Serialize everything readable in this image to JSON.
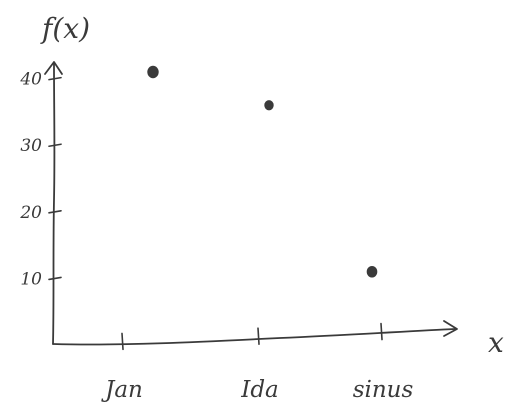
{
  "chart_data": {
    "type": "scatter",
    "xlabel": "x",
    "ylabel": "f(x)",
    "categories": [
      "Jan",
      "Ida",
      "sinus"
    ],
    "values": [
      41,
      36,
      11
    ],
    "yticks": [
      10,
      20,
      30,
      40
    ],
    "ylim": [
      0,
      44
    ],
    "grid": false,
    "legend": "none",
    "style": "hand-drawn pencil sketch",
    "ink_color": "#3a3a3a"
  }
}
